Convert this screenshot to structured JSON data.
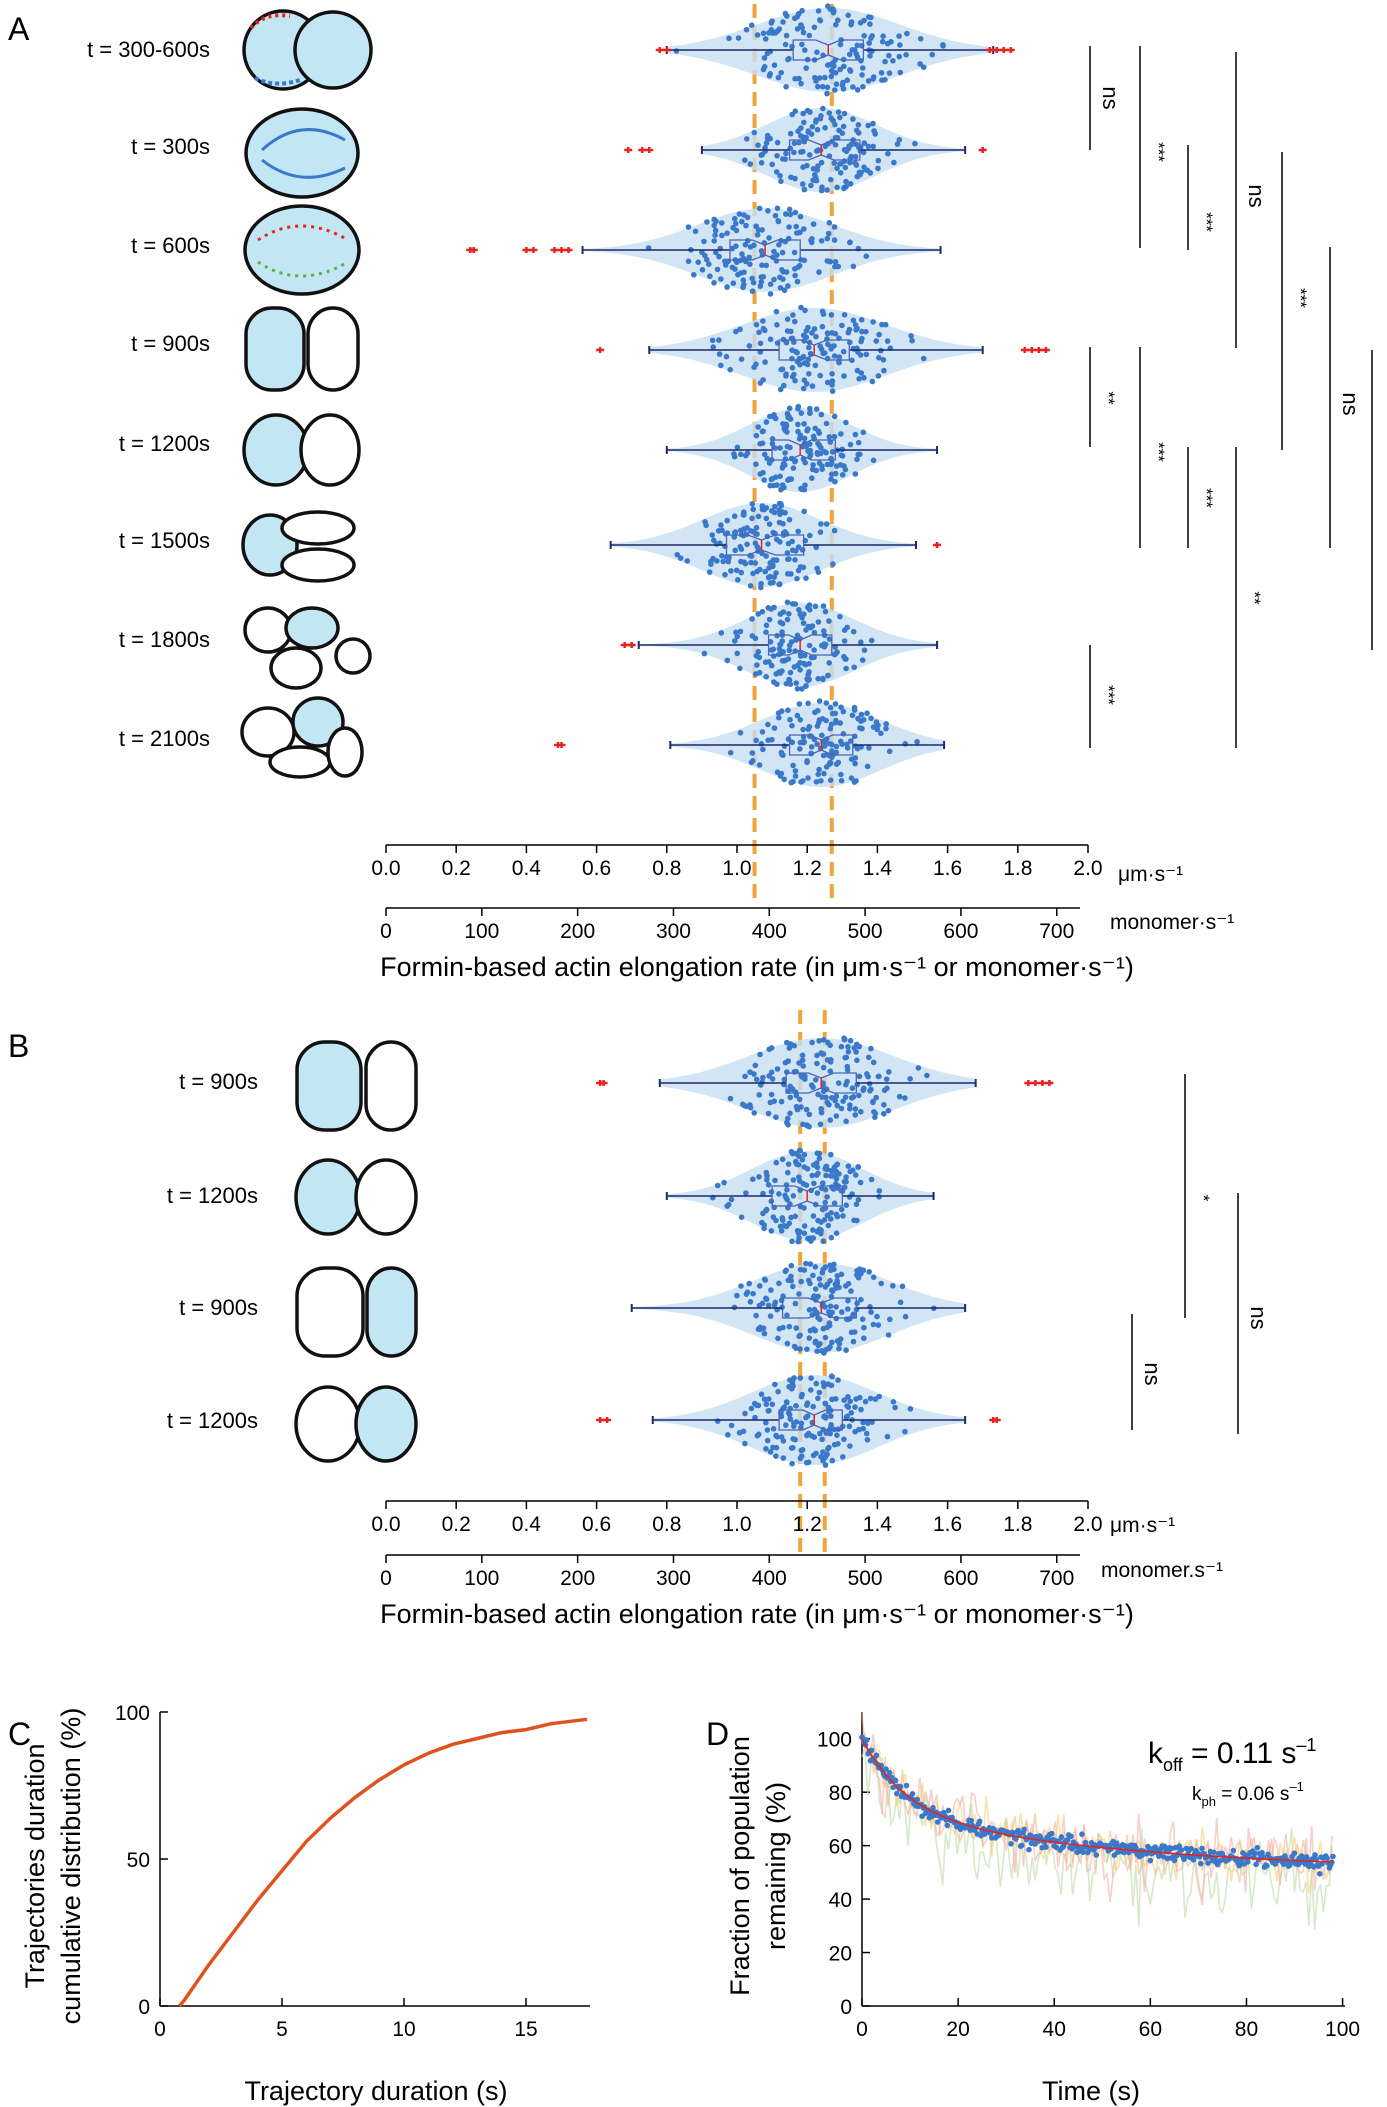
{
  "colors": {
    "dots": "#3a78c9",
    "box": "#4a64b8",
    "violin": "#c5def3",
    "outlier": "#e8231f",
    "dashed": "#f2a33a",
    "cell_fill": "#c3e6f5",
    "curve_c": "#e0521d",
    "fit_d": "#e8231f"
  },
  "panel_a": {
    "letter": "A",
    "rows": [
      "t = 300-600s",
      "t = 300s",
      "t = 600s",
      "t = 900s",
      "t = 1200s",
      "t = 1500s",
      "t = 1800s",
      "t = 2100s"
    ],
    "axis_um": {
      "ticks": [
        "0.0",
        "0.2",
        "0.4",
        "0.6",
        "0.8",
        "1.0",
        "1.2",
        "1.4",
        "1.6",
        "1.8",
        "2.0"
      ],
      "unit": "μm·s⁻¹"
    },
    "axis_monomer": {
      "ticks": [
        "0",
        "100",
        "200",
        "300",
        "400",
        "500",
        "600",
        "700"
      ],
      "unit": "monomer·s⁻¹"
    },
    "xlabel": "Formin-based actin elongation rate (in μm·s⁻¹ or monomer·s⁻¹)",
    "significance": [
      "ns",
      "***",
      "***",
      "ns",
      "***",
      "ns",
      "***",
      "**",
      "***",
      "***",
      "**",
      "***"
    ]
  },
  "panel_b": {
    "letter": "B",
    "rows": [
      "t = 900s",
      "t = 1200s",
      "t = 900s",
      "t = 1200s"
    ],
    "axis_um": {
      "ticks": [
        "0.0",
        "0.2",
        "0.4",
        "0.6",
        "0.8",
        "1.0",
        "1.2",
        "1.4",
        "1.6",
        "1.8",
        "2.0"
      ],
      "unit": "μm·s⁻¹"
    },
    "axis_monomer": {
      "ticks": [
        "0",
        "100",
        "200",
        "300",
        "400",
        "500",
        "600",
        "700"
      ],
      "unit": "monomer.s⁻¹"
    },
    "xlabel": "Formin-based actin elongation rate (in μm·s⁻¹ or monomer·s⁻¹)",
    "significance": [
      "*",
      "ns",
      "ns"
    ]
  },
  "panel_c": {
    "letter": "C",
    "ylabel_line1": "Trajectories duration",
    "ylabel_line2": "cumulative distribution (%)",
    "xlabel": "Trajectory duration (s)",
    "xticks": [
      "0",
      "5",
      "10",
      "15"
    ],
    "yticks": [
      "0",
      "50",
      "100"
    ]
  },
  "panel_d": {
    "letter": "D",
    "ylabel_line1": "Fraction of population",
    "ylabel_line2": "remaining (%)",
    "xlabel": "Time (s)",
    "xticks": [
      "0",
      "20",
      "40",
      "60",
      "80",
      "100"
    ],
    "yticks": [
      "0",
      "20",
      "40",
      "60",
      "80",
      "100"
    ],
    "koff_label": "k",
    "koff_sub": "off",
    "koff_value": " = 0.11 s",
    "koff_exp": "–1",
    "kph_label": "k",
    "kph_sub": "ph",
    "kph_value": " = 0.06 s",
    "kph_exp": "–1"
  },
  "chart_data": [
    {
      "type": "scatter",
      "panel": "A",
      "xlabel": "Formin-based actin elongation rate (in μm·s⁻¹ or monomer·s⁻¹)",
      "xlim": [
        0,
        2.0
      ],
      "categories": [
        "t = 300-600s",
        "t = 300s",
        "t = 600s",
        "t = 900s",
        "t = 1200s",
        "t = 1500s",
        "t = 1800s",
        "t = 2100s"
      ],
      "median": [
        1.26,
        1.24,
        1.08,
        1.22,
        1.18,
        1.07,
        1.18,
        1.24
      ],
      "q1": [
        1.16,
        1.15,
        0.98,
        1.12,
        1.1,
        0.97,
        1.09,
        1.15
      ],
      "q3": [
        1.36,
        1.35,
        1.18,
        1.32,
        1.28,
        1.19,
        1.27,
        1.33
      ],
      "whisker_low": [
        0.8,
        0.9,
        0.56,
        0.75,
        0.8,
        0.64,
        0.72,
        0.81
      ],
      "whisker_high": [
        1.73,
        1.65,
        1.58,
        1.7,
        1.57,
        1.51,
        1.57,
        1.59
      ],
      "spread": [
        0.17,
        0.13,
        0.16,
        0.17,
        0.12,
        0.14,
        0.13,
        0.14
      ],
      "outliers": [
        [
          0.78,
          0.8,
          1.72,
          1.74,
          1.76,
          1.78
        ],
        [
          0.69,
          0.73,
          0.75,
          1.7
        ],
        [
          0.24,
          0.25,
          0.4,
          0.42,
          0.48,
          0.5,
          0.52
        ],
        [
          0.61,
          1.82,
          1.84,
          1.86,
          1.88
        ],
        [],
        [
          1.57
        ],
        [
          0.68,
          0.7
        ],
        [
          0.49,
          0.5
        ]
      ],
      "reference_lines": [
        1.05,
        1.27
      ],
      "ticks_um": [
        0.0,
        0.2,
        0.4,
        0.6,
        0.8,
        1.0,
        1.2,
        1.4,
        1.6,
        1.8,
        2.0
      ],
      "ticks_monomer": [
        0,
        100,
        200,
        300,
        400,
        500,
        600,
        700
      ],
      "significance": [
        "ns",
        "***",
        "***",
        "ns",
        "***",
        "ns",
        "***",
        "**",
        "***",
        "***",
        "**",
        "***"
      ]
    },
    {
      "type": "scatter",
      "panel": "B",
      "xlabel": "Formin-based actin elongation rate (in μm·s⁻¹ or monomer·s⁻¹)",
      "xlim": [
        0,
        2.0
      ],
      "categories": [
        "t = 900s",
        "t = 1200s",
        "t = 900s",
        "t = 1200s"
      ],
      "median": [
        1.24,
        1.2,
        1.24,
        1.22
      ],
      "q1": [
        1.14,
        1.1,
        1.13,
        1.12
      ],
      "q3": [
        1.34,
        1.3,
        1.34,
        1.3
      ],
      "whisker_low": [
        0.78,
        0.8,
        0.7,
        0.76
      ],
      "whisker_high": [
        1.68,
        1.56,
        1.65,
        1.65
      ],
      "spread": [
        0.17,
        0.13,
        0.16,
        0.15
      ],
      "outliers": [
        [
          0.61,
          0.62,
          1.83,
          1.85,
          1.87,
          1.89
        ],
        [],
        [],
        [
          0.61,
          0.63,
          1.73,
          1.74
        ]
      ],
      "reference_lines": [
        1.18,
        1.25
      ],
      "ticks_um": [
        0.0,
        0.2,
        0.4,
        0.6,
        0.8,
        1.0,
        1.2,
        1.4,
        1.6,
        1.8,
        2.0
      ],
      "ticks_monomer": [
        0,
        100,
        200,
        300,
        400,
        500,
        600,
        700
      ],
      "significance": [
        "*",
        "ns",
        "ns"
      ]
    },
    {
      "type": "line",
      "panel": "C",
      "xlabel": "Trajectory duration (s)",
      "ylabel": "Trajectories duration cumulative distribution (%)",
      "xlim": [
        0,
        17.5
      ],
      "ylim": [
        0,
        100
      ],
      "x": [
        0.8,
        1,
        2,
        3,
        4,
        5,
        6,
        7,
        8,
        9,
        10,
        11,
        12,
        13,
        14,
        15,
        16,
        17,
        17.5
      ],
      "y": [
        0,
        2,
        14,
        25,
        36,
        46,
        56,
        64,
        71,
        77,
        82,
        86,
        89,
        91,
        93,
        94,
        96,
        97,
        97.5
      ]
    },
    {
      "type": "scatter",
      "panel": "D",
      "xlabel": "Time (s)",
      "ylabel": "Fraction of population remaining (%)",
      "xlim": [
        0,
        100
      ],
      "ylim": [
        0,
        110
      ],
      "fit": {
        "k_off": 0.11,
        "k_ph": 0.06,
        "plateau": 50
      },
      "x": [
        0,
        2,
        4,
        6,
        8,
        10,
        15,
        20,
        25,
        30,
        35,
        40,
        45,
        50,
        55,
        60,
        65,
        70,
        75,
        80,
        85,
        90,
        95,
        98
      ],
      "y": [
        100,
        90,
        83,
        78,
        74,
        71,
        65,
        62,
        60,
        58,
        57,
        56,
        55,
        55,
        54,
        54,
        53,
        52,
        52,
        51,
        51,
        50,
        50,
        49
      ]
    }
  ]
}
